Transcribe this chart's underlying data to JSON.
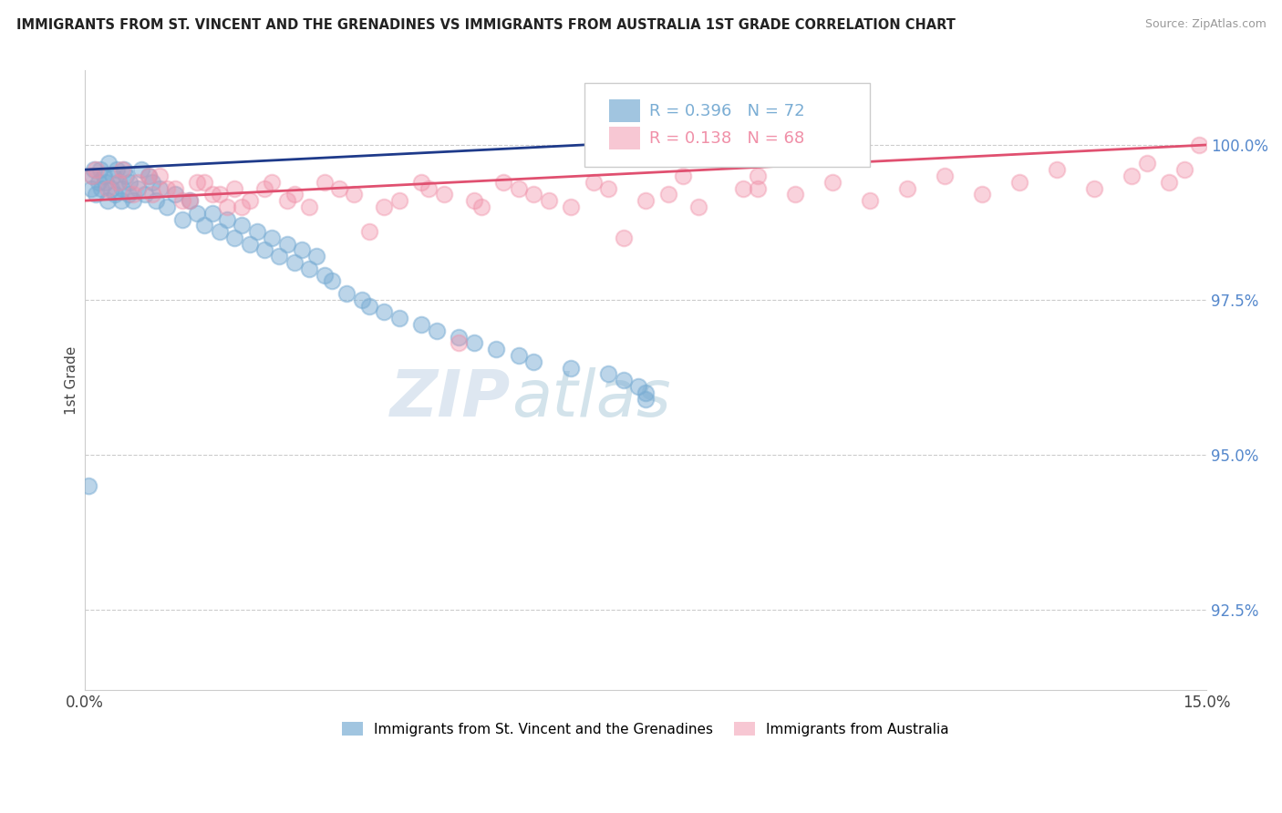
{
  "title": "IMMIGRANTS FROM ST. VINCENT AND THE GRENADINES VS IMMIGRANTS FROM AUSTRALIA 1ST GRADE CORRELATION CHART",
  "source": "Source: ZipAtlas.com",
  "ylabel": "1st Grade",
  "yticks": [
    92.5,
    95.0,
    97.5,
    100.0
  ],
  "ytick_labels": [
    "92.5%",
    "95.0%",
    "97.5%",
    "100.0%"
  ],
  "xmin": 0.0,
  "xmax": 15.0,
  "ymin": 91.2,
  "ymax": 101.2,
  "legend_blue_label": "Immigrants from St. Vincent and the Grenadines",
  "legend_pink_label": "Immigrants from Australia",
  "blue_R": 0.396,
  "blue_N": 72,
  "pink_R": 0.138,
  "pink_N": 68,
  "blue_color": "#7AADD4",
  "pink_color": "#F090A8",
  "blue_line_color": "#1E3A8A",
  "pink_line_color": "#E05070",
  "bg_color": "#FFFFFF",
  "grid_color": "#CCCCCC",
  "title_color": "#222222",
  "source_color": "#999999",
  "ytick_color": "#5588CC",
  "blue_scatter_x": [
    0.05,
    0.08,
    0.1,
    0.12,
    0.15,
    0.18,
    0.2,
    0.22,
    0.25,
    0.28,
    0.3,
    0.32,
    0.35,
    0.38,
    0.4,
    0.42,
    0.45,
    0.48,
    0.5,
    0.52,
    0.55,
    0.58,
    0.6,
    0.65,
    0.7,
    0.75,
    0.8,
    0.85,
    0.9,
    0.95,
    1.0,
    1.1,
    1.2,
    1.3,
    1.4,
    1.5,
    1.6,
    1.7,
    1.8,
    1.9,
    2.0,
    2.1,
    2.2,
    2.3,
    2.4,
    2.5,
    2.6,
    2.7,
    2.8,
    2.9,
    3.0,
    3.1,
    3.2,
    3.3,
    3.5,
    3.7,
    3.8,
    4.0,
    4.2,
    4.5,
    4.7,
    5.0,
    5.2,
    5.5,
    5.8,
    6.0,
    6.5,
    7.0,
    7.2,
    7.4,
    7.5,
    7.5
  ],
  "blue_scatter_y": [
    94.5,
    99.3,
    99.5,
    99.6,
    99.2,
    99.4,
    99.6,
    99.3,
    99.5,
    99.4,
    99.1,
    99.7,
    99.3,
    99.5,
    99.2,
    99.6,
    99.4,
    99.1,
    99.3,
    99.6,
    99.5,
    99.2,
    99.4,
    99.1,
    99.3,
    99.6,
    99.2,
    99.5,
    99.4,
    99.1,
    99.3,
    99.0,
    99.2,
    98.8,
    99.1,
    98.9,
    98.7,
    98.9,
    98.6,
    98.8,
    98.5,
    98.7,
    98.4,
    98.6,
    98.3,
    98.5,
    98.2,
    98.4,
    98.1,
    98.3,
    98.0,
    98.2,
    97.9,
    97.8,
    97.6,
    97.5,
    97.4,
    97.3,
    97.2,
    97.1,
    97.0,
    96.9,
    96.8,
    96.7,
    96.6,
    96.5,
    96.4,
    96.3,
    96.2,
    96.1,
    96.0,
    95.9
  ],
  "pink_scatter_x": [
    0.1,
    0.3,
    0.5,
    0.7,
    0.9,
    1.0,
    1.2,
    1.4,
    1.5,
    1.7,
    1.9,
    2.0,
    2.2,
    2.5,
    2.8,
    3.0,
    3.4,
    3.8,
    4.2,
    4.5,
    4.8,
    5.0,
    5.3,
    5.8,
    6.2,
    6.8,
    7.2,
    7.8,
    8.2,
    8.8,
    9.0,
    9.5,
    10.0,
    10.5,
    11.0,
    11.5,
    12.0,
    12.5,
    13.0,
    13.5,
    14.0,
    14.2,
    14.5,
    14.7,
    14.9,
    0.15,
    0.45,
    0.65,
    0.85,
    1.1,
    1.3,
    1.6,
    1.8,
    2.1,
    2.4,
    2.7,
    3.2,
    3.6,
    4.0,
    4.6,
    5.2,
    5.6,
    6.0,
    6.5,
    7.0,
    7.5,
    8.0,
    9.0
  ],
  "pink_scatter_y": [
    99.5,
    99.3,
    99.6,
    99.4,
    99.2,
    99.5,
    99.3,
    99.1,
    99.4,
    99.2,
    99.0,
    99.3,
    99.1,
    99.4,
    99.2,
    99.0,
    99.3,
    98.6,
    99.1,
    99.4,
    99.2,
    96.8,
    99.0,
    99.3,
    99.1,
    99.4,
    98.5,
    99.2,
    99.0,
    99.3,
    99.5,
    99.2,
    99.4,
    99.1,
    99.3,
    99.5,
    99.2,
    99.4,
    99.6,
    99.3,
    99.5,
    99.7,
    99.4,
    99.6,
    100.0,
    99.6,
    99.4,
    99.2,
    99.5,
    99.3,
    99.1,
    99.4,
    99.2,
    99.0,
    99.3,
    99.1,
    99.4,
    99.2,
    99.0,
    99.3,
    99.1,
    99.4,
    99.2,
    99.0,
    99.3,
    99.1,
    99.5,
    99.3
  ],
  "blue_line_x": [
    0.0,
    7.5
  ],
  "blue_line_y": [
    99.6,
    100.05
  ],
  "pink_line_x": [
    0.0,
    15.0
  ],
  "pink_line_y": [
    99.1,
    100.0
  ]
}
